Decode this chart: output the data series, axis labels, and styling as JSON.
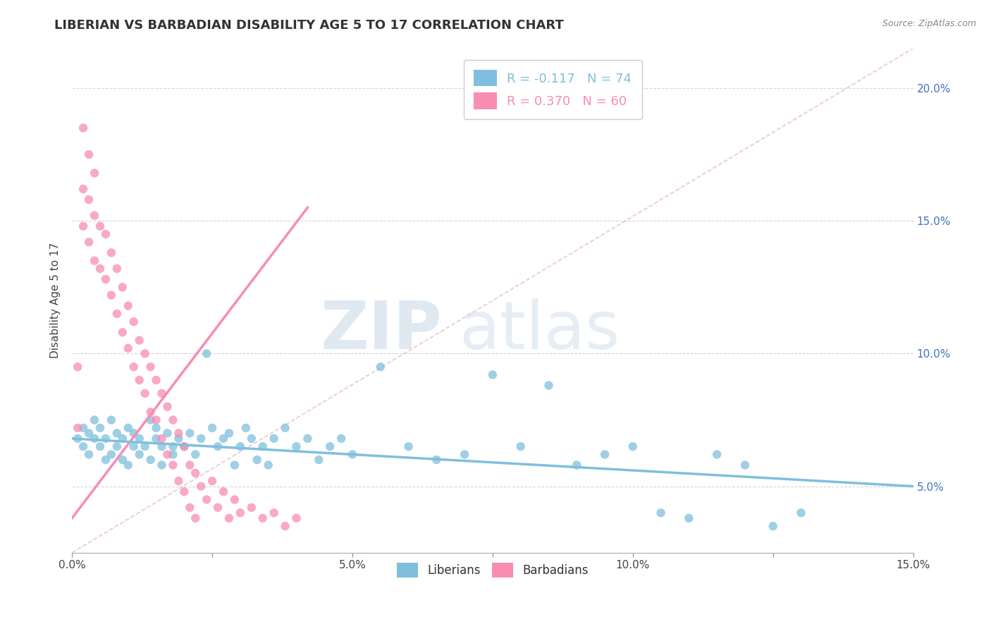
{
  "title": "LIBERIAN VS BARBADIAN DISABILITY AGE 5 TO 17 CORRELATION CHART",
  "source_text": "Source: ZipAtlas.com",
  "ylabel": "Disability Age 5 to 17",
  "xlim": [
    0.0,
    0.15
  ],
  "ylim": [
    0.025,
    0.215
  ],
  "xtick_vals": [
    0.0,
    0.025,
    0.05,
    0.075,
    0.1,
    0.125,
    0.15
  ],
  "xtick_labels": [
    "0.0%",
    "",
    "5.0%",
    "",
    "10.0%",
    "",
    "15.0%"
  ],
  "ytick_vals": [
    0.05,
    0.1,
    0.15,
    0.2
  ],
  "ytick_labels_right": [
    "5.0%",
    "10.0%",
    "15.0%",
    "20.0%"
  ],
  "liberian_color": "#7fbfdd",
  "barbadian_color": "#f78db0",
  "watermark_color": "#d0dff0",
  "watermark_text_zip": "ZIP",
  "watermark_text_atlas": "atlas",
  "background_color": "#ffffff",
  "legend_R_liberian": "R = -0.117",
  "legend_N_liberian": "N = 74",
  "legend_R_barbadian": "R = 0.370",
  "legend_N_barbadian": "N = 60",
  "lib_line": [
    [
      0.0,
      0.068
    ],
    [
      0.15,
      0.05
    ]
  ],
  "bar_line": [
    [
      0.0,
      0.038
    ],
    [
      0.042,
      0.155
    ]
  ],
  "ref_line": [
    [
      0.0,
      0.025
    ],
    [
      0.15,
      0.215
    ]
  ],
  "liberian_scatter": [
    [
      0.001,
      0.068
    ],
    [
      0.002,
      0.072
    ],
    [
      0.002,
      0.065
    ],
    [
      0.003,
      0.07
    ],
    [
      0.003,
      0.062
    ],
    [
      0.004,
      0.068
    ],
    [
      0.004,
      0.075
    ],
    [
      0.005,
      0.065
    ],
    [
      0.005,
      0.072
    ],
    [
      0.006,
      0.06
    ],
    [
      0.006,
      0.068
    ],
    [
      0.007,
      0.075
    ],
    [
      0.007,
      0.062
    ],
    [
      0.008,
      0.07
    ],
    [
      0.008,
      0.065
    ],
    [
      0.009,
      0.06
    ],
    [
      0.009,
      0.068
    ],
    [
      0.01,
      0.072
    ],
    [
      0.01,
      0.058
    ],
    [
      0.011,
      0.065
    ],
    [
      0.011,
      0.07
    ],
    [
      0.012,
      0.062
    ],
    [
      0.012,
      0.068
    ],
    [
      0.013,
      0.065
    ],
    [
      0.014,
      0.075
    ],
    [
      0.014,
      0.06
    ],
    [
      0.015,
      0.068
    ],
    [
      0.015,
      0.072
    ],
    [
      0.016,
      0.065
    ],
    [
      0.016,
      0.058
    ],
    [
      0.017,
      0.07
    ],
    [
      0.018,
      0.065
    ],
    [
      0.018,
      0.062
    ],
    [
      0.019,
      0.068
    ],
    [
      0.02,
      0.065
    ],
    [
      0.021,
      0.07
    ],
    [
      0.022,
      0.062
    ],
    [
      0.023,
      0.068
    ],
    [
      0.024,
      0.1
    ],
    [
      0.025,
      0.072
    ],
    [
      0.026,
      0.065
    ],
    [
      0.027,
      0.068
    ],
    [
      0.028,
      0.07
    ],
    [
      0.029,
      0.058
    ],
    [
      0.03,
      0.065
    ],
    [
      0.031,
      0.072
    ],
    [
      0.032,
      0.068
    ],
    [
      0.033,
      0.06
    ],
    [
      0.034,
      0.065
    ],
    [
      0.035,
      0.058
    ],
    [
      0.036,
      0.068
    ],
    [
      0.038,
      0.072
    ],
    [
      0.04,
      0.065
    ],
    [
      0.042,
      0.068
    ],
    [
      0.044,
      0.06
    ],
    [
      0.046,
      0.065
    ],
    [
      0.048,
      0.068
    ],
    [
      0.05,
      0.062
    ],
    [
      0.055,
      0.095
    ],
    [
      0.06,
      0.065
    ],
    [
      0.065,
      0.06
    ],
    [
      0.07,
      0.062
    ],
    [
      0.075,
      0.092
    ],
    [
      0.08,
      0.065
    ],
    [
      0.085,
      0.088
    ],
    [
      0.09,
      0.058
    ],
    [
      0.095,
      0.062
    ],
    [
      0.1,
      0.065
    ],
    [
      0.105,
      0.04
    ],
    [
      0.11,
      0.038
    ],
    [
      0.115,
      0.062
    ],
    [
      0.12,
      0.058
    ],
    [
      0.125,
      0.035
    ],
    [
      0.13,
      0.04
    ]
  ],
  "barbadian_scatter": [
    [
      0.001,
      0.095
    ],
    [
      0.001,
      0.072
    ],
    [
      0.002,
      0.185
    ],
    [
      0.002,
      0.162
    ],
    [
      0.002,
      0.148
    ],
    [
      0.003,
      0.175
    ],
    [
      0.003,
      0.158
    ],
    [
      0.003,
      0.142
    ],
    [
      0.004,
      0.168
    ],
    [
      0.004,
      0.152
    ],
    [
      0.004,
      0.135
    ],
    [
      0.005,
      0.148
    ],
    [
      0.005,
      0.132
    ],
    [
      0.006,
      0.145
    ],
    [
      0.006,
      0.128
    ],
    [
      0.007,
      0.138
    ],
    [
      0.007,
      0.122
    ],
    [
      0.008,
      0.132
    ],
    [
      0.008,
      0.115
    ],
    [
      0.009,
      0.125
    ],
    [
      0.009,
      0.108
    ],
    [
      0.01,
      0.118
    ],
    [
      0.01,
      0.102
    ],
    [
      0.011,
      0.112
    ],
    [
      0.011,
      0.095
    ],
    [
      0.012,
      0.105
    ],
    [
      0.012,
      0.09
    ],
    [
      0.013,
      0.1
    ],
    [
      0.013,
      0.085
    ],
    [
      0.014,
      0.095
    ],
    [
      0.014,
      0.078
    ],
    [
      0.015,
      0.09
    ],
    [
      0.015,
      0.075
    ],
    [
      0.016,
      0.085
    ],
    [
      0.016,
      0.068
    ],
    [
      0.017,
      0.08
    ],
    [
      0.017,
      0.062
    ],
    [
      0.018,
      0.075
    ],
    [
      0.018,
      0.058
    ],
    [
      0.019,
      0.07
    ],
    [
      0.019,
      0.052
    ],
    [
      0.02,
      0.065
    ],
    [
      0.02,
      0.048
    ],
    [
      0.021,
      0.058
    ],
    [
      0.021,
      0.042
    ],
    [
      0.022,
      0.055
    ],
    [
      0.022,
      0.038
    ],
    [
      0.023,
      0.05
    ],
    [
      0.024,
      0.045
    ],
    [
      0.025,
      0.052
    ],
    [
      0.026,
      0.042
    ],
    [
      0.027,
      0.048
    ],
    [
      0.028,
      0.038
    ],
    [
      0.029,
      0.045
    ],
    [
      0.03,
      0.04
    ],
    [
      0.032,
      0.042
    ],
    [
      0.034,
      0.038
    ],
    [
      0.036,
      0.04
    ],
    [
      0.038,
      0.035
    ],
    [
      0.04,
      0.038
    ]
  ]
}
